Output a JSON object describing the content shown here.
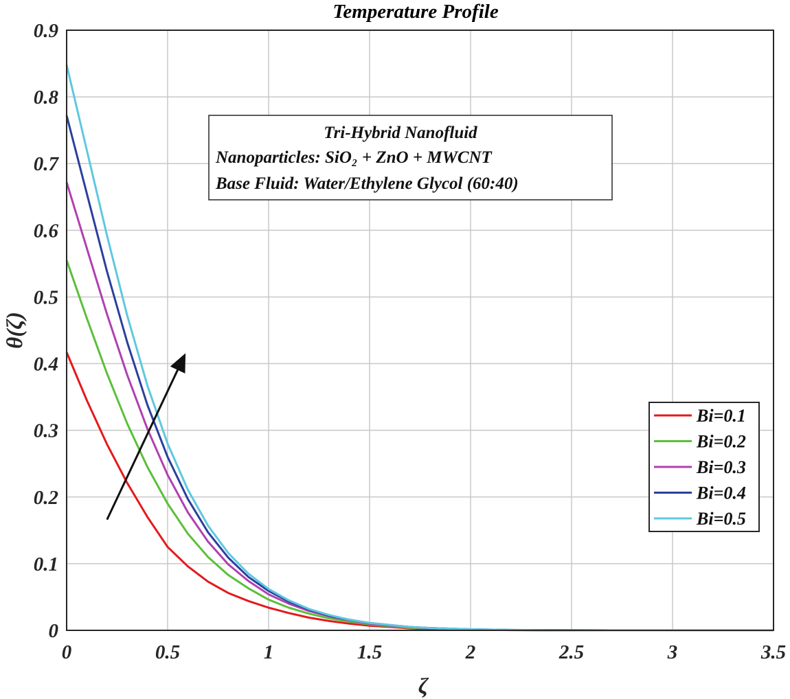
{
  "chart_data": {
    "type": "line",
    "title": "Temperature Profile",
    "xlabel": "ζ",
    "ylabel": "θ(ζ)",
    "xlim": [
      0,
      3.5
    ],
    "ylim": [
      0,
      0.9
    ],
    "xticks": [
      "0",
      "0.5",
      "1",
      "1.5",
      "2",
      "2.5",
      "3",
      "3.5"
    ],
    "yticks": [
      "0",
      "0.1",
      "0.2",
      "0.3",
      "0.4",
      "0.5",
      "0.6",
      "0.7",
      "0.8",
      "0.9"
    ],
    "grid": true,
    "legend_position": "right",
    "x": [
      0,
      0.1,
      0.2,
      0.3,
      0.4,
      0.5,
      0.6,
      0.7,
      0.8,
      0.9,
      1.0,
      1.1,
      1.2,
      1.3,
      1.4,
      1.5,
      1.6,
      1.7,
      1.8,
      2.0,
      2.2,
      2.5,
      3.0,
      3.5
    ],
    "series": [
      {
        "name": "Bi=0.1",
        "color": "#e31a1c",
        "values": [
          0.417,
          0.345,
          0.279,
          0.221,
          0.17,
          0.125,
          0.096,
          0.073,
          0.056,
          0.044,
          0.034,
          0.026,
          0.019,
          0.014,
          0.01,
          0.007,
          0.005,
          0.003,
          0.002,
          0.001,
          0.0004,
          0.0001,
          0.0,
          0.0
        ]
      },
      {
        "name": "Bi=0.2",
        "color": "#5bbf3a",
        "values": [
          0.555,
          0.468,
          0.385,
          0.31,
          0.245,
          0.19,
          0.145,
          0.11,
          0.083,
          0.063,
          0.046,
          0.034,
          0.025,
          0.018,
          0.013,
          0.009,
          0.006,
          0.004,
          0.003,
          0.001,
          0.0005,
          0.0001,
          0.0,
          0.0
        ]
      },
      {
        "name": "Bi=0.3",
        "color": "#b13fb1",
        "values": [
          0.672,
          0.573,
          0.474,
          0.383,
          0.302,
          0.233,
          0.177,
          0.133,
          0.099,
          0.074,
          0.054,
          0.04,
          0.029,
          0.021,
          0.015,
          0.01,
          0.007,
          0.005,
          0.003,
          0.0015,
          0.0005,
          0.0001,
          0.0,
          0.0
        ]
      },
      {
        "name": "Bi=0.4",
        "color": "#2a3f9e",
        "values": [
          0.772,
          0.655,
          0.538,
          0.432,
          0.338,
          0.26,
          0.197,
          0.147,
          0.109,
          0.08,
          0.059,
          0.043,
          0.031,
          0.022,
          0.016,
          0.011,
          0.008,
          0.005,
          0.0035,
          0.0015,
          0.0006,
          0.0001,
          0.0,
          0.0
        ]
      },
      {
        "name": "Bi=0.5",
        "color": "#5ec8df",
        "values": [
          0.848,
          0.72,
          0.592,
          0.472,
          0.367,
          0.28,
          0.211,
          0.157,
          0.116,
          0.085,
          0.062,
          0.045,
          0.032,
          0.023,
          0.016,
          0.011,
          0.008,
          0.005,
          0.0035,
          0.0015,
          0.0006,
          0.0001,
          0.0,
          0.0
        ]
      }
    ],
    "annotation_box": {
      "lines": [
        "Tri-Hybrid Nanofluid",
        "Nanoparticles:  SiO₂ + ZnO + MWCNT",
        "Base Fluid: Water/Ethylene Glycol (60:40)"
      ]
    },
    "arrow": {
      "from": [
        0.2,
        0.166
      ],
      "to": [
        0.58,
        0.41
      ],
      "meaning": "increasing Bi"
    }
  }
}
